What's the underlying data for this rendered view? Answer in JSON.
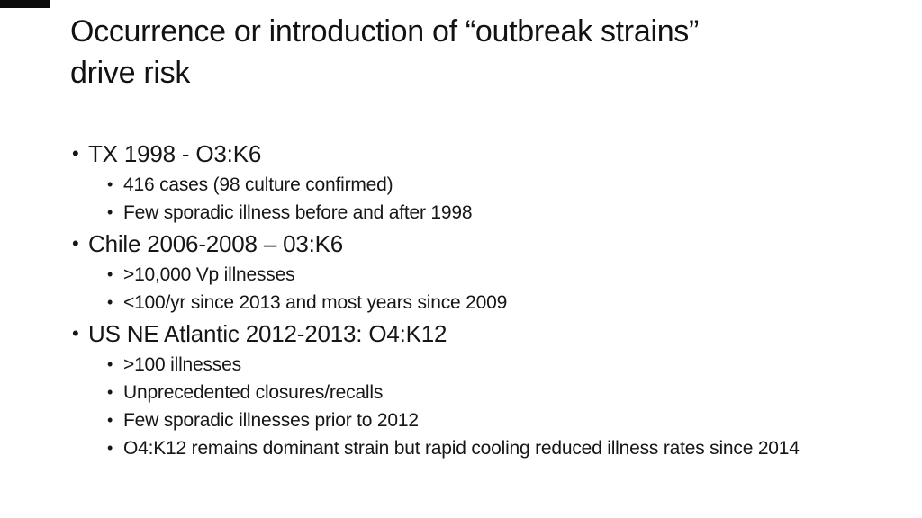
{
  "slide": {
    "bullet_char": "•",
    "title_lines": [
      "Occurrence or introduction of “outbreak strains”",
      "drive risk"
    ],
    "bullets": [
      {
        "level": 1,
        "text": "TX 1998 - O3:K6"
      },
      {
        "level": 2,
        "text": "416 cases (98 culture confirmed)"
      },
      {
        "level": 2,
        "text": "Few sporadic illness before and after 1998"
      },
      {
        "level": 1,
        "text": "Chile 2006-2008 – 03:K6"
      },
      {
        "level": 2,
        "text": ">10,000 Vp illnesses"
      },
      {
        "level": 2,
        "text": "<100/yr since 2013 and most years since 2009"
      },
      {
        "level": 1,
        "text": "US NE Atlantic 2012-2013: O4:K12"
      },
      {
        "level": 2,
        "text": ">100 illnesses"
      },
      {
        "level": 2,
        "text": "Unprecedented closures/recalls"
      },
      {
        "level": 2,
        "text": "Few sporadic illnesses prior to 2012"
      },
      {
        "level": 2,
        "text": "O4:K12 remains dominant strain but rapid cooling reduced illness rates since 2014"
      }
    ],
    "colors": {
      "background": "#ffffff",
      "text": "#161616",
      "corner_bar": "#0c0c0c"
    }
  }
}
